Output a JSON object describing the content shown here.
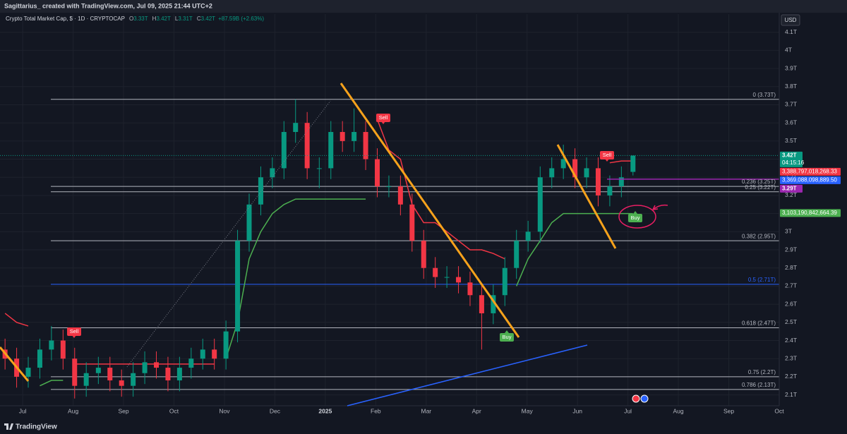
{
  "header": {
    "title": "Sagittarius_ created with TradingView.com, Jul 09, 2025 21:44 UTC+2",
    "brand": "TradingView"
  },
  "legend": {
    "symbol": "Crypto Total Market Cap, $ · 1D · CRYPTOCAP",
    "ohlc": [
      {
        "key": "O",
        "value": 3.33,
        "label": "3.33T"
      },
      {
        "key": "H",
        "value": 3.42,
        "label": "3.42T"
      },
      {
        "key": "L",
        "value": 3.31,
        "label": "3.31T"
      },
      {
        "key": "C",
        "value": 3.42,
        "label": "3.42T"
      }
    ],
    "change": "+87.59B (+2.63%)"
  },
  "chart_data": {
    "type": "candlestick",
    "currency": "USD",
    "x": [
      -0.35,
      -0.12,
      0.11,
      0.34,
      0.57,
      0.8,
      1.03,
      1.26,
      1.5,
      1.73,
      1.96,
      2.19,
      2.42,
      2.65,
      2.88,
      3.11,
      3.34,
      3.57,
      3.8,
      4.03,
      4.26,
      4.49,
      4.72,
      4.95,
      5.18,
      5.41,
      5.64,
      5.88,
      6.11,
      6.34,
      6.57,
      6.8,
      7.03,
      7.26,
      7.49,
      7.72,
      7.95,
      8.18,
      8.41,
      8.64,
      8.87,
      9.1,
      9.33,
      9.56,
      9.79,
      10.02,
      10.26,
      10.49,
      10.72,
      10.95,
      11.18,
      11.41,
      11.64,
      11.87,
      12.1
    ],
    "open": [
      2.35,
      2.3,
      2.2,
      2.25,
      2.35,
      2.4,
      2.3,
      2.15,
      2.22,
      2.25,
      2.18,
      2.15,
      2.22,
      2.28,
      2.25,
      2.18,
      2.25,
      2.3,
      2.35,
      2.3,
      2.45,
      2.95,
      3.15,
      3.3,
      3.35,
      3.55,
      3.6,
      3.35,
      3.35,
      3.55,
      3.5,
      3.55,
      3.4,
      3.25,
      3.25,
      3.15,
      2.95,
      2.8,
      2.75,
      2.75,
      2.72,
      2.65,
      2.55,
      2.65,
      2.8,
      2.95,
      3.0,
      3.3,
      3.35,
      3.4,
      3.3,
      3.35,
      3.2,
      3.25,
      3.33
    ],
    "high": [
      2.41,
      2.36,
      2.31,
      2.41,
      2.48,
      2.46,
      2.36,
      2.28,
      2.31,
      2.31,
      2.24,
      2.28,
      2.34,
      2.34,
      2.31,
      2.31,
      2.36,
      2.41,
      2.41,
      2.51,
      3.01,
      3.21,
      3.36,
      3.41,
      3.61,
      3.73,
      3.66,
      3.41,
      3.61,
      3.61,
      3.68,
      3.61,
      3.46,
      3.31,
      3.31,
      3.21,
      3.01,
      2.86,
      2.81,
      2.81,
      2.78,
      2.71,
      2.71,
      2.86,
      3.01,
      3.06,
      3.36,
      3.41,
      3.48,
      3.46,
      3.41,
      3.41,
      3.31,
      3.36,
      3.42
    ],
    "low": [
      2.24,
      2.14,
      2.14,
      2.19,
      2.29,
      2.24,
      2.08,
      2.09,
      2.16,
      2.12,
      2.09,
      2.09,
      2.16,
      2.19,
      2.12,
      2.12,
      2.19,
      2.24,
      2.24,
      2.24,
      2.39,
      2.89,
      3.09,
      3.24,
      3.29,
      3.49,
      3.29,
      3.24,
      3.29,
      3.44,
      3.44,
      3.34,
      3.19,
      3.19,
      3.09,
      2.89,
      2.74,
      2.69,
      2.69,
      2.66,
      2.59,
      2.35,
      2.49,
      2.59,
      2.74,
      2.89,
      2.94,
      3.24,
      3.29,
      3.24,
      3.24,
      3.14,
      3.14,
      3.19,
      3.31
    ],
    "close": [
      2.3,
      2.2,
      2.25,
      2.35,
      2.4,
      2.3,
      2.15,
      2.22,
      2.25,
      2.18,
      2.15,
      2.22,
      2.28,
      2.25,
      2.18,
      2.25,
      2.3,
      2.35,
      2.3,
      2.45,
      2.95,
      3.15,
      3.3,
      3.35,
      3.55,
      3.6,
      3.35,
      3.35,
      3.55,
      3.5,
      3.55,
      3.4,
      3.25,
      3.25,
      3.15,
      2.95,
      2.8,
      2.75,
      2.75,
      2.72,
      2.65,
      2.55,
      2.65,
      2.8,
      2.95,
      3.0,
      3.3,
      3.35,
      3.4,
      3.3,
      3.35,
      3.2,
      3.25,
      3.3,
      3.42
    ],
    "up_color": "#089981",
    "down_color": "#f23645",
    "bands": [
      {
        "color": "#f23645",
        "values": [
          2.55,
          2.5,
          2.48,
          null,
          null,
          null,
          2.27,
          2.27,
          2.27,
          2.27,
          2.27,
          2.27,
          2.27,
          2.27,
          2.27,
          2.27,
          2.27,
          2.27,
          2.27,
          null,
          null,
          null,
          null,
          null,
          null,
          null,
          null,
          null,
          null,
          null,
          null,
          null,
          3.62,
          3.45,
          3.4,
          3.15,
          3.05,
          3.05,
          3.0,
          2.95,
          2.9,
          2.9,
          2.88,
          2.85,
          null,
          null,
          null,
          null,
          null,
          null,
          null,
          null,
          3.38,
          3.39,
          3.39
        ]
      },
      {
        "color": "#4caf50",
        "values": [
          null,
          null,
          null,
          2.15,
          2.18,
          2.18,
          null,
          null,
          null,
          null,
          null,
          null,
          null,
          null,
          null,
          null,
          null,
          null,
          null,
          2.3,
          2.5,
          2.85,
          3.0,
          3.1,
          3.15,
          3.18,
          3.18,
          3.18,
          3.18,
          3.18,
          3.18,
          3.18,
          null,
          null,
          null,
          null,
          null,
          null,
          null,
          null,
          null,
          null,
          null,
          null,
          2.7,
          2.85,
          2.95,
          3.05,
          3.1,
          3.1,
          3.1,
          3.1,
          3.1,
          3.1,
          3.1
        ]
      }
    ],
    "xlim": [
      -0.45,
      15
    ],
    "xticks": [
      {
        "value": 0,
        "label": "Jul"
      },
      {
        "value": 1,
        "label": "Aug"
      },
      {
        "value": 2,
        "label": "Sep"
      },
      {
        "value": 3,
        "label": "Oct"
      },
      {
        "value": 4,
        "label": "Nov"
      },
      {
        "value": 5,
        "label": "Dec"
      },
      {
        "value": 6,
        "label": "2025"
      },
      {
        "value": 7,
        "label": "Feb"
      },
      {
        "value": 8,
        "label": "Mar"
      },
      {
        "value": 9,
        "label": "Apr"
      },
      {
        "value": 10,
        "label": "May"
      },
      {
        "value": 11,
        "label": "Jun"
      },
      {
        "value": 12,
        "label": "Jul"
      },
      {
        "value": 13,
        "label": "Aug"
      },
      {
        "value": 14,
        "label": "Sep"
      },
      {
        "value": 15,
        "label": "Oct"
      }
    ],
    "ylim": [
      2.04,
      4.2
    ],
    "yticks": [
      {
        "value": 2.1,
        "label": "2.1T"
      },
      {
        "value": 2.2,
        "label": "2.2T"
      },
      {
        "value": 2.3,
        "label": "2.3T"
      },
      {
        "value": 2.4,
        "label": "2.4T"
      },
      {
        "value": 2.5,
        "label": "2.5T"
      },
      {
        "value": 2.6,
        "label": "2.6T"
      },
      {
        "value": 2.7,
        "label": "2.7T"
      },
      {
        "value": 2.8,
        "label": "2.8T"
      },
      {
        "value": 2.9,
        "label": "2.9T"
      },
      {
        "value": 3,
        "label": "3T"
      },
      {
        "value": 3.1,
        "label": "3.1T"
      },
      {
        "value": 3.2,
        "label": "3.2T"
      },
      {
        "value": 3.3,
        "label": "3.3T"
      },
      {
        "value": 3.4,
        "label": "3.4T"
      },
      {
        "value": 3.5,
        "label": "3.5T"
      },
      {
        "value": 3.6,
        "label": "3.6T"
      },
      {
        "value": 3.7,
        "label": "3.7T"
      },
      {
        "value": 3.8,
        "label": "3.8T"
      },
      {
        "value": 3.9,
        "label": "3.9T"
      },
      {
        "value": 4,
        "label": "4T"
      },
      {
        "value": 4.1,
        "label": "4.1T"
      }
    ],
    "grid": true,
    "fib_levels": [
      {
        "value": 3.73,
        "label": "0 (3.73T)",
        "color": "#b2b5be"
      },
      {
        "value": 3.25,
        "label": "0.236 (3.25T)",
        "color": "#b2b5be"
      },
      {
        "value": 3.22,
        "label": "0.25 (3.22T)",
        "color": "#b2b5be"
      },
      {
        "value": 2.95,
        "label": "0.382 (2.95T)",
        "color": "#b2b5be"
      },
      {
        "value": 2.71,
        "label": "0.5 (2.71T)",
        "color": "#2962ff"
      },
      {
        "value": 2.47,
        "label": "0.618 (2.47T)",
        "color": "#b2b5be"
      },
      {
        "value": 2.2,
        "label": "0.75 (2.2T)",
        "color": "#b2b5be"
      },
      {
        "value": 2.13,
        "label": "0.786 (2.13T)",
        "color": "#b2b5be"
      }
    ],
    "price_labels": [
      {
        "value": 3.42,
        "label": "3.42T",
        "countdown": "04:15:16",
        "color": "#089981"
      },
      {
        "value": 3.388797018268,
        "label": "3,388,797,018,268.33",
        "color": "#f23645"
      },
      {
        "value": 3.369088098889,
        "label": "3,369,088,098,889.50",
        "color": "#2962ff"
      },
      {
        "value": 3.29,
        "label": "3.29T",
        "color": "#9c27b0"
      },
      {
        "value": 3.103190842664,
        "label": "3,103,190,842,664.39",
        "color": "#4caf50"
      }
    ],
    "signals": [
      "Sell",
      "Sell",
      "Sell",
      "Buy",
      "Buy"
    ]
  }
}
